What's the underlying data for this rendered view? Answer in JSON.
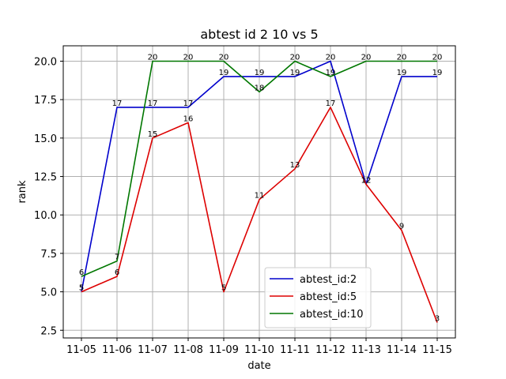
{
  "chart_data": {
    "type": "line",
    "title": "abtest id 2 10 vs 5",
    "xlabel": "date",
    "ylabel": "rank",
    "categories": [
      "11-05",
      "11-06",
      "11-07",
      "11-08",
      "11-09",
      "11-10",
      "11-11",
      "11-12",
      "11-13",
      "11-14",
      "11-15"
    ],
    "ylim": [
      2.0,
      21.0
    ],
    "yticks": [
      2.5,
      5.0,
      7.5,
      10.0,
      12.5,
      15.0,
      17.5,
      20.0
    ],
    "ytick_labels": [
      "2.5",
      "5.0",
      "7.5",
      "10.0",
      "12.5",
      "15.0",
      "17.5",
      "20.0"
    ],
    "grid": true,
    "legend_position": "lower-center-right",
    "series": [
      {
        "name": "abtest_id:2",
        "color": "#0000cc",
        "values": [
          5,
          17,
          17,
          17,
          19,
          19,
          19,
          20,
          12,
          19,
          19
        ]
      },
      {
        "name": "abtest_id:5",
        "color": "#dd0000",
        "values": [
          5,
          6,
          15,
          16,
          5,
          11,
          13,
          17,
          12,
          9,
          3
        ]
      },
      {
        "name": "abtest_id:10",
        "color": "#007700",
        "values": [
          6,
          7,
          20,
          20,
          20,
          18,
          20,
          19,
          20,
          20,
          20
        ]
      }
    ]
  }
}
